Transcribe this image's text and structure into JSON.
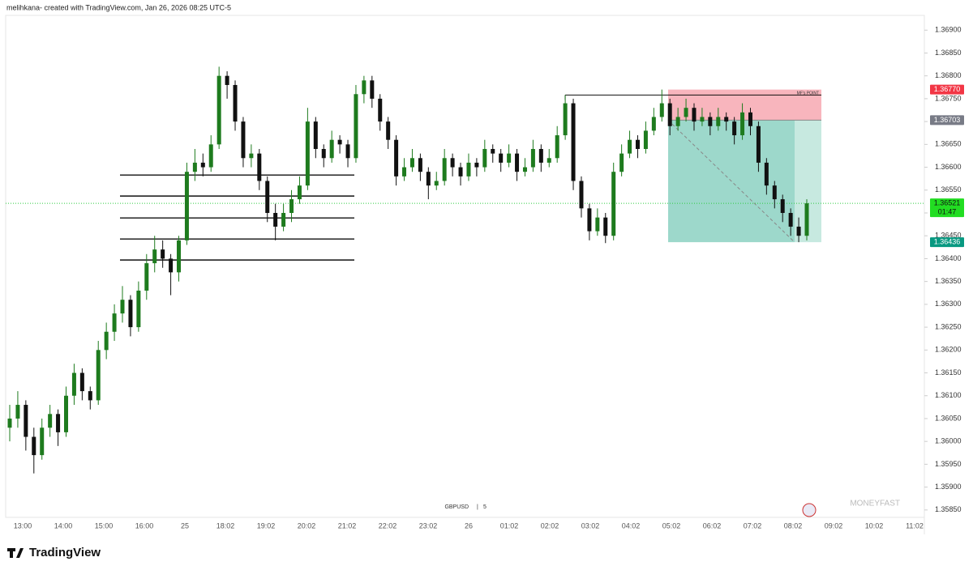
{
  "chart_data": {
    "type": "candlestick",
    "header": "melihkana- created with TradingView.com, Jan 26, 2026 08:25 UTC-5",
    "symbol": "GBPUSD",
    "interval": "5",
    "watermark": "MONEYFAST",
    "brand": "TradingView",
    "up_color": "#1e7b1e",
    "down_color": "#111111",
    "ylim": [
      1.35832,
      1.36966
    ],
    "yticks": [
      {
        "value": 1.369,
        "label": "1.36900"
      },
      {
        "value": 1.3685,
        "label": "1.36850"
      },
      {
        "value": 1.368,
        "label": "1.36800"
      },
      {
        "value": 1.3675,
        "label": "1.36750"
      },
      {
        "value": 1.367,
        "label": "1.36700"
      },
      {
        "value": 1.3665,
        "label": "1.36650"
      },
      {
        "value": 1.366,
        "label": "1.36600"
      },
      {
        "value": 1.3655,
        "label": "1.36550"
      },
      {
        "value": 1.365,
        "label": "1.36500"
      },
      {
        "value": 1.3645,
        "label": "1.36450"
      },
      {
        "value": 1.364,
        "label": "1.36400"
      },
      {
        "value": 1.3635,
        "label": "1.36350"
      },
      {
        "value": 1.363,
        "label": "1.36300"
      },
      {
        "value": 1.3625,
        "label": "1.36250"
      },
      {
        "value": 1.362,
        "label": "1.36200"
      },
      {
        "value": 1.3615,
        "label": "1.36150"
      },
      {
        "value": 1.361,
        "label": "1.36100"
      },
      {
        "value": 1.3605,
        "label": "1.36050"
      },
      {
        "value": 1.36,
        "label": "1.36000"
      },
      {
        "value": 1.3595,
        "label": "1.35950"
      },
      {
        "value": 1.359,
        "label": "1.35900"
      },
      {
        "value": 1.3585,
        "label": "1.35850"
      }
    ],
    "time_labels": [
      "13:00",
      "14:00",
      "15:00",
      "16:00",
      "25",
      "18:02",
      "19:02",
      "20:02",
      "21:02",
      "22:02",
      "23:02",
      "26",
      "01:02",
      "02:02",
      "03:02",
      "04:02",
      "05:02",
      "06:02",
      "07:02",
      "08:02",
      "09:02",
      "10:02",
      "11:02"
    ],
    "ohlc": [
      [
        1.3603,
        1.3608,
        1.36,
        1.3605
      ],
      [
        1.3605,
        1.3611,
        1.3603,
        1.3608
      ],
      [
        1.3608,
        1.3609,
        1.3598,
        1.3601
      ],
      [
        1.3601,
        1.3603,
        1.3593,
        1.3597
      ],
      [
        1.3597,
        1.3605,
        1.3596,
        1.3603
      ],
      [
        1.3603,
        1.3608,
        1.3601,
        1.3606
      ],
      [
        1.3606,
        1.3607,
        1.3599,
        1.3602
      ],
      [
        1.3602,
        1.3612,
        1.3601,
        1.361
      ],
      [
        1.361,
        1.3617,
        1.3608,
        1.3615
      ],
      [
        1.3615,
        1.3616,
        1.3609,
        1.3611
      ],
      [
        1.3611,
        1.3612,
        1.3607,
        1.3609
      ],
      [
        1.3609,
        1.3622,
        1.3608,
        1.362
      ],
      [
        1.362,
        1.3626,
        1.3618,
        1.3624
      ],
      [
        1.3624,
        1.363,
        1.3622,
        1.3628
      ],
      [
        1.3628,
        1.3634,
        1.3626,
        1.3631
      ],
      [
        1.3631,
        1.3632,
        1.3623,
        1.3625
      ],
      [
        1.3625,
        1.3635,
        1.3624,
        1.3633
      ],
      [
        1.3633,
        1.3641,
        1.3631,
        1.3639
      ],
      [
        1.3639,
        1.3645,
        1.3637,
        1.3642
      ],
      [
        1.3642,
        1.3644,
        1.3638,
        1.364
      ],
      [
        1.364,
        1.3641,
        1.3632,
        1.3637
      ],
      [
        1.3637,
        1.3645,
        1.3635,
        1.3644
      ],
      [
        1.3644,
        1.3661,
        1.3643,
        1.3659
      ],
      [
        1.3659,
        1.3664,
        1.3657,
        1.3661
      ],
      [
        1.3661,
        1.3663,
        1.3658,
        1.366
      ],
      [
        1.366,
        1.3667,
        1.3659,
        1.3665
      ],
      [
        1.3665,
        1.3682,
        1.3664,
        1.368
      ],
      [
        1.368,
        1.3681,
        1.3675,
        1.3678
      ],
      [
        1.3678,
        1.3679,
        1.3668,
        1.367
      ],
      [
        1.367,
        1.3671,
        1.366,
        1.3662
      ],
      [
        1.3662,
        1.3665,
        1.366,
        1.3663
      ],
      [
        1.3663,
        1.3664,
        1.3655,
        1.3657
      ],
      [
        1.3657,
        1.3658,
        1.3648,
        1.365
      ],
      [
        1.365,
        1.3652,
        1.3644,
        1.3647
      ],
      [
        1.3647,
        1.3652,
        1.3646,
        1.365
      ],
      [
        1.365,
        1.3655,
        1.3648,
        1.3653
      ],
      [
        1.3653,
        1.3658,
        1.3652,
        1.3656
      ],
      [
        1.3656,
        1.3673,
        1.3655,
        1.367
      ],
      [
        1.367,
        1.3671,
        1.3662,
        1.3664
      ],
      [
        1.3664,
        1.3665,
        1.366,
        1.3662
      ],
      [
        1.3662,
        1.3668,
        1.3661,
        1.3666
      ],
      [
        1.3666,
        1.3667,
        1.3663,
        1.3665
      ],
      [
        1.3665,
        1.3666,
        1.366,
        1.3662
      ],
      [
        1.3662,
        1.3678,
        1.3661,
        1.3676
      ],
      [
        1.3676,
        1.368,
        1.3674,
        1.3679
      ],
      [
        1.3679,
        1.368,
        1.3673,
        1.3675
      ],
      [
        1.3675,
        1.3676,
        1.3668,
        1.367
      ],
      [
        1.367,
        1.3671,
        1.3664,
        1.3666
      ],
      [
        1.3666,
        1.3667,
        1.3656,
        1.3658
      ],
      [
        1.3658,
        1.3662,
        1.3657,
        1.366
      ],
      [
        1.366,
        1.3664,
        1.3659,
        1.3662
      ],
      [
        1.3662,
        1.3663,
        1.3657,
        1.3659
      ],
      [
        1.3659,
        1.366,
        1.3653,
        1.3656
      ],
      [
        1.3656,
        1.3659,
        1.3655,
        1.3657
      ],
      [
        1.3657,
        1.3664,
        1.3656,
        1.3662
      ],
      [
        1.3662,
        1.3663,
        1.3658,
        1.366
      ],
      [
        1.366,
        1.3661,
        1.3656,
        1.3658
      ],
      [
        1.3658,
        1.3663,
        1.3657,
        1.3661
      ],
      [
        1.3661,
        1.3662,
        1.3658,
        1.366
      ],
      [
        1.366,
        1.3666,
        1.3659,
        1.3664
      ],
      [
        1.3664,
        1.3665,
        1.3661,
        1.3663
      ],
      [
        1.3663,
        1.3664,
        1.3659,
        1.3661
      ],
      [
        1.3661,
        1.3665,
        1.366,
        1.3663
      ],
      [
        1.3663,
        1.3664,
        1.3657,
        1.3659
      ],
      [
        1.3659,
        1.3662,
        1.3658,
        1.366
      ],
      [
        1.366,
        1.3666,
        1.3659,
        1.3664
      ],
      [
        1.3664,
        1.3665,
        1.3659,
        1.3661
      ],
      [
        1.3661,
        1.3664,
        1.366,
        1.3662
      ],
      [
        1.3662,
        1.3669,
        1.3661,
        1.3667
      ],
      [
        1.3667,
        1.36758,
        1.3666,
        1.3674
      ],
      [
        1.3674,
        1.3675,
        1.3655,
        1.3657
      ],
      [
        1.3657,
        1.3658,
        1.3649,
        1.3651
      ],
      [
        1.3651,
        1.3652,
        1.3644,
        1.3646
      ],
      [
        1.3646,
        1.3651,
        1.3645,
        1.3649
      ],
      [
        1.3649,
        1.365,
        1.36434,
        1.3645
      ],
      [
        1.3645,
        1.3661,
        1.3644,
        1.3659
      ],
      [
        1.3659,
        1.3665,
        1.3658,
        1.3663
      ],
      [
        1.3663,
        1.3668,
        1.3662,
        1.3666
      ],
      [
        1.3666,
        1.3667,
        1.3662,
        1.3664
      ],
      [
        1.3664,
        1.367,
        1.3663,
        1.3668
      ],
      [
        1.3668,
        1.3673,
        1.3667,
        1.3671
      ],
      [
        1.3671,
        1.3677,
        1.367,
        1.3674
      ],
      [
        1.3674,
        1.3675,
        1.3667,
        1.3669
      ],
      [
        1.3669,
        1.3673,
        1.3668,
        1.3671
      ],
      [
        1.3671,
        1.3675,
        1.367,
        1.3673
      ],
      [
        1.3673,
        1.3674,
        1.3668,
        1.367
      ],
      [
        1.367,
        1.3673,
        1.3669,
        1.3671
      ],
      [
        1.3671,
        1.3672,
        1.3667,
        1.3669
      ],
      [
        1.3669,
        1.3673,
        1.3668,
        1.3671
      ],
      [
        1.3671,
        1.3672,
        1.3668,
        1.367
      ],
      [
        1.367,
        1.3671,
        1.3665,
        1.3667
      ],
      [
        1.3667,
        1.3674,
        1.3666,
        1.3672
      ],
      [
        1.3672,
        1.3673,
        1.3667,
        1.3669
      ],
      [
        1.3669,
        1.367,
        1.3659,
        1.3661
      ],
      [
        1.3661,
        1.3662,
        1.3654,
        1.3656
      ],
      [
        1.3656,
        1.3657,
        1.3651,
        1.3653
      ],
      [
        1.3653,
        1.3654,
        1.3648,
        1.365
      ],
      [
        1.365,
        1.3651,
        1.3645,
        1.3647
      ],
      [
        1.3647,
        1.3649,
        1.36436,
        1.3645
      ],
      [
        1.3645,
        1.3653,
        1.3644,
        1.36521
      ]
    ],
    "levels": [
      1.36583,
      1.36537,
      1.36489,
      1.36443,
      1.36397
    ],
    "annotation": {
      "text": "MF's POINT",
      "value": 1.36758
    },
    "position": {
      "stop": {
        "value": 1.3677,
        "label": "1.36770"
      },
      "entry": {
        "value": 1.36703,
        "label": "1.36703"
      },
      "target": {
        "value": 1.36436,
        "label": "1.36436"
      }
    },
    "last_price": {
      "value": 1.36521,
      "label": "1.36521",
      "countdown": "01:47"
    }
  }
}
